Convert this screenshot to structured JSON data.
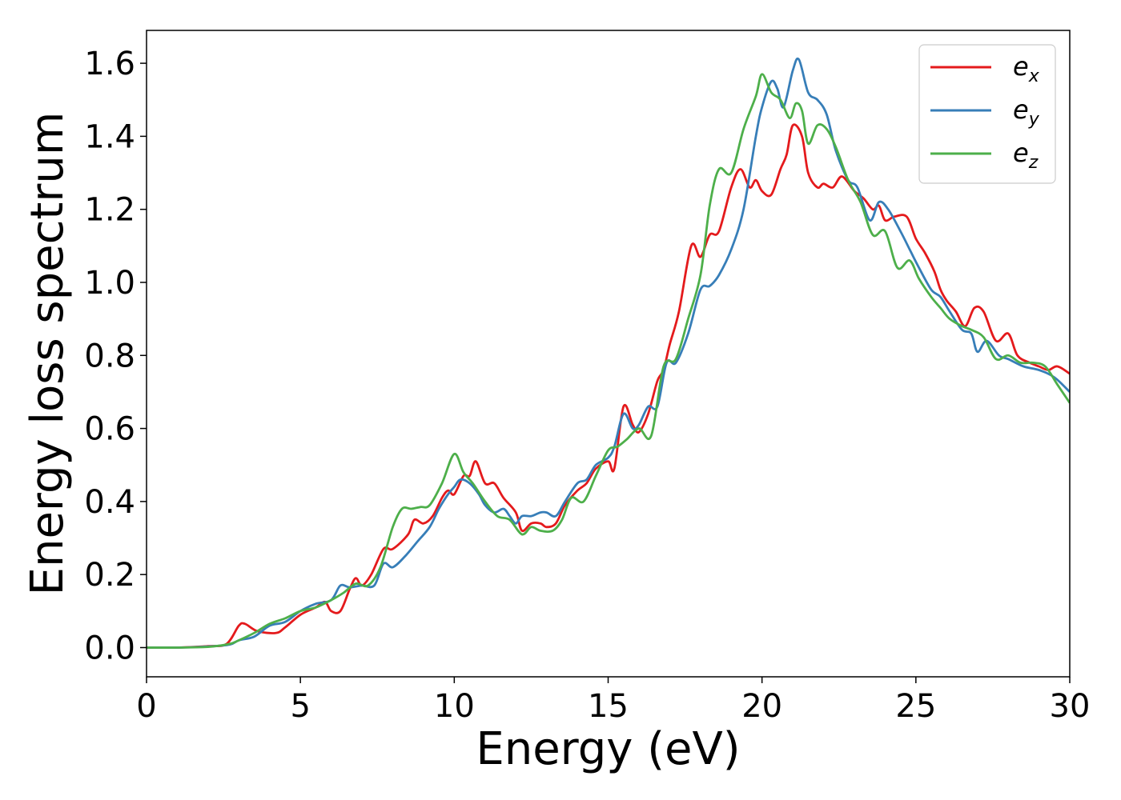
{
  "chart_data": {
    "type": "line",
    "xlabel": "Energy (eV)",
    "ylabel": "Energy loss spectrum",
    "xlim": [
      0,
      30
    ],
    "ylim": [
      -0.08,
      1.69
    ],
    "xticks": [
      0,
      5,
      10,
      15,
      20,
      25,
      30
    ],
    "xtick_labels": [
      "0",
      "5",
      "10",
      "15",
      "20",
      "25",
      "30"
    ],
    "yticks": [
      0.0,
      0.2,
      0.4,
      0.6,
      0.8,
      1.0,
      1.2,
      1.4,
      1.6
    ],
    "ytick_labels": [
      "0.0",
      "0.2",
      "0.4",
      "0.6",
      "0.8",
      "1.0",
      "1.2",
      "1.4",
      "1.6"
    ],
    "grid": false,
    "legend_position": "top-right",
    "series": [
      {
        "name": "e",
        "subscript": "x",
        "color": "#e41a1c",
        "points": [
          [
            0,
            0
          ],
          [
            1,
            0
          ],
          [
            2,
            0.004
          ],
          [
            2.6,
            0.01
          ],
          [
            3.0,
            0.06
          ],
          [
            3.2,
            0.065
          ],
          [
            3.6,
            0.045
          ],
          [
            4.2,
            0.04
          ],
          [
            4.5,
            0.055
          ],
          [
            5.0,
            0.09
          ],
          [
            5.5,
            0.11
          ],
          [
            5.8,
            0.125
          ],
          [
            6.0,
            0.1
          ],
          [
            6.3,
            0.1
          ],
          [
            6.6,
            0.16
          ],
          [
            6.8,
            0.19
          ],
          [
            7.0,
            0.17
          ],
          [
            7.3,
            0.2
          ],
          [
            7.7,
            0.27
          ],
          [
            8.0,
            0.27
          ],
          [
            8.5,
            0.31
          ],
          [
            8.7,
            0.35
          ],
          [
            9.0,
            0.34
          ],
          [
            9.3,
            0.36
          ],
          [
            9.6,
            0.41
          ],
          [
            9.8,
            0.43
          ],
          [
            10.0,
            0.42
          ],
          [
            10.3,
            0.47
          ],
          [
            10.5,
            0.47
          ],
          [
            10.7,
            0.51
          ],
          [
            11.0,
            0.45
          ],
          [
            11.3,
            0.45
          ],
          [
            11.6,
            0.41
          ],
          [
            12.0,
            0.37
          ],
          [
            12.2,
            0.32
          ],
          [
            12.5,
            0.34
          ],
          [
            12.8,
            0.34
          ],
          [
            13.0,
            0.33
          ],
          [
            13.3,
            0.34
          ],
          [
            13.6,
            0.39
          ],
          [
            14.0,
            0.43
          ],
          [
            14.3,
            0.45
          ],
          [
            14.6,
            0.49
          ],
          [
            15.0,
            0.51
          ],
          [
            15.2,
            0.49
          ],
          [
            15.5,
            0.66
          ],
          [
            15.8,
            0.61
          ],
          [
            16.0,
            0.59
          ],
          [
            16.3,
            0.64
          ],
          [
            16.6,
            0.73
          ],
          [
            16.8,
            0.76
          ],
          [
            17.0,
            0.83
          ],
          [
            17.3,
            0.92
          ],
          [
            17.7,
            1.1
          ],
          [
            18.0,
            1.07
          ],
          [
            18.3,
            1.13
          ],
          [
            18.6,
            1.14
          ],
          [
            19.0,
            1.26
          ],
          [
            19.3,
            1.31
          ],
          [
            19.6,
            1.26
          ],
          [
            19.8,
            1.28
          ],
          [
            20.0,
            1.25
          ],
          [
            20.3,
            1.24
          ],
          [
            20.6,
            1.31
          ],
          [
            20.8,
            1.35
          ],
          [
            21.0,
            1.43
          ],
          [
            21.3,
            1.4
          ],
          [
            21.5,
            1.3
          ],
          [
            21.8,
            1.26
          ],
          [
            22.0,
            1.27
          ],
          [
            22.3,
            1.26
          ],
          [
            22.6,
            1.29
          ],
          [
            23.0,
            1.25
          ],
          [
            23.3,
            1.23
          ],
          [
            23.6,
            1.2
          ],
          [
            23.8,
            1.21
          ],
          [
            24.0,
            1.17
          ],
          [
            24.3,
            1.18
          ],
          [
            24.7,
            1.18
          ],
          [
            25.0,
            1.12
          ],
          [
            25.3,
            1.08
          ],
          [
            25.6,
            1.03
          ],
          [
            25.8,
            0.98
          ],
          [
            26.0,
            0.95
          ],
          [
            26.3,
            0.92
          ],
          [
            26.6,
            0.88
          ],
          [
            26.9,
            0.93
          ],
          [
            27.2,
            0.92
          ],
          [
            27.6,
            0.84
          ],
          [
            28.0,
            0.86
          ],
          [
            28.3,
            0.8
          ],
          [
            28.7,
            0.78
          ],
          [
            29.0,
            0.77
          ],
          [
            29.3,
            0.76
          ],
          [
            29.6,
            0.77
          ],
          [
            30.0,
            0.75
          ]
        ]
      },
      {
        "name": "e",
        "subscript": "y",
        "color": "#377eb8",
        "points": [
          [
            0,
            0
          ],
          [
            1,
            0
          ],
          [
            2,
            0.003
          ],
          [
            2.7,
            0.008
          ],
          [
            3.0,
            0.02
          ],
          [
            3.5,
            0.03
          ],
          [
            4.0,
            0.06
          ],
          [
            4.5,
            0.07
          ],
          [
            5.0,
            0.1
          ],
          [
            5.5,
            0.12
          ],
          [
            6.0,
            0.13
          ],
          [
            6.3,
            0.17
          ],
          [
            6.6,
            0.165
          ],
          [
            7.0,
            0.17
          ],
          [
            7.4,
            0.17
          ],
          [
            7.7,
            0.23
          ],
          [
            8.0,
            0.22
          ],
          [
            8.4,
            0.25
          ],
          [
            8.8,
            0.29
          ],
          [
            9.2,
            0.33
          ],
          [
            9.5,
            0.38
          ],
          [
            9.8,
            0.42
          ],
          [
            10.0,
            0.44
          ],
          [
            10.2,
            0.46
          ],
          [
            10.5,
            0.45
          ],
          [
            10.8,
            0.42
          ],
          [
            11.0,
            0.39
          ],
          [
            11.3,
            0.37
          ],
          [
            11.6,
            0.38
          ],
          [
            11.8,
            0.36
          ],
          [
            12.0,
            0.34
          ],
          [
            12.2,
            0.36
          ],
          [
            12.5,
            0.36
          ],
          [
            12.8,
            0.37
          ],
          [
            13.0,
            0.37
          ],
          [
            13.3,
            0.36
          ],
          [
            13.6,
            0.4
          ],
          [
            14.0,
            0.45
          ],
          [
            14.3,
            0.46
          ],
          [
            14.6,
            0.5
          ],
          [
            15.0,
            0.52
          ],
          [
            15.2,
            0.55
          ],
          [
            15.5,
            0.64
          ],
          [
            15.8,
            0.6
          ],
          [
            16.0,
            0.61
          ],
          [
            16.3,
            0.66
          ],
          [
            16.6,
            0.66
          ],
          [
            16.9,
            0.78
          ],
          [
            17.2,
            0.78
          ],
          [
            17.6,
            0.86
          ],
          [
            18.0,
            0.98
          ],
          [
            18.3,
            0.99
          ],
          [
            18.6,
            1.02
          ],
          [
            19.0,
            1.09
          ],
          [
            19.4,
            1.2
          ],
          [
            19.8,
            1.4
          ],
          [
            20.0,
            1.48
          ],
          [
            20.3,
            1.55
          ],
          [
            20.5,
            1.53
          ],
          [
            20.7,
            1.48
          ],
          [
            21.0,
            1.58
          ],
          [
            21.2,
            1.61
          ],
          [
            21.5,
            1.52
          ],
          [
            21.8,
            1.5
          ],
          [
            22.1,
            1.46
          ],
          [
            22.4,
            1.36
          ],
          [
            22.8,
            1.28
          ],
          [
            23.1,
            1.26
          ],
          [
            23.5,
            1.17
          ],
          [
            23.8,
            1.22
          ],
          [
            24.1,
            1.2
          ],
          [
            24.5,
            1.14
          ],
          [
            24.8,
            1.09
          ],
          [
            25.1,
            1.04
          ],
          [
            25.5,
            0.98
          ],
          [
            25.8,
            0.96
          ],
          [
            26.1,
            0.92
          ],
          [
            26.5,
            0.87
          ],
          [
            26.8,
            0.86
          ],
          [
            27.0,
            0.81
          ],
          [
            27.3,
            0.84
          ],
          [
            27.7,
            0.8
          ],
          [
            28.0,
            0.79
          ],
          [
            28.5,
            0.77
          ],
          [
            29.0,
            0.76
          ],
          [
            29.5,
            0.74
          ],
          [
            30.0,
            0.7
          ]
        ]
      },
      {
        "name": "e",
        "subscript": "z",
        "color": "#4daf4a",
        "points": [
          [
            0,
            0
          ],
          [
            1,
            0
          ],
          [
            2,
            0.002
          ],
          [
            2.7,
            0.01
          ],
          [
            3.0,
            0.02
          ],
          [
            3.5,
            0.04
          ],
          [
            4.0,
            0.065
          ],
          [
            4.5,
            0.08
          ],
          [
            5.0,
            0.1
          ],
          [
            5.5,
            0.11
          ],
          [
            6.0,
            0.13
          ],
          [
            6.4,
            0.15
          ],
          [
            6.8,
            0.175
          ],
          [
            7.2,
            0.17
          ],
          [
            7.6,
            0.22
          ],
          [
            8.0,
            0.33
          ],
          [
            8.3,
            0.38
          ],
          [
            8.6,
            0.38
          ],
          [
            8.9,
            0.385
          ],
          [
            9.2,
            0.39
          ],
          [
            9.6,
            0.45
          ],
          [
            10.0,
            0.53
          ],
          [
            10.3,
            0.48
          ],
          [
            10.6,
            0.45
          ],
          [
            11.0,
            0.4
          ],
          [
            11.4,
            0.36
          ],
          [
            11.8,
            0.35
          ],
          [
            12.2,
            0.31
          ],
          [
            12.5,
            0.33
          ],
          [
            12.8,
            0.32
          ],
          [
            13.2,
            0.32
          ],
          [
            13.5,
            0.35
          ],
          [
            13.8,
            0.41
          ],
          [
            14.2,
            0.4
          ],
          [
            14.6,
            0.47
          ],
          [
            15.0,
            0.54
          ],
          [
            15.3,
            0.55
          ],
          [
            15.6,
            0.57
          ],
          [
            16.0,
            0.6
          ],
          [
            16.4,
            0.58
          ],
          [
            16.8,
            0.77
          ],
          [
            17.2,
            0.79
          ],
          [
            17.6,
            0.9
          ],
          [
            18.0,
            1.02
          ],
          [
            18.3,
            1.21
          ],
          [
            18.6,
            1.31
          ],
          [
            19.0,
            1.3
          ],
          [
            19.4,
            1.42
          ],
          [
            19.8,
            1.51
          ],
          [
            20.0,
            1.57
          ],
          [
            20.3,
            1.52
          ],
          [
            20.6,
            1.5
          ],
          [
            20.9,
            1.45
          ],
          [
            21.1,
            1.49
          ],
          [
            21.3,
            1.47
          ],
          [
            21.5,
            1.38
          ],
          [
            21.8,
            1.43
          ],
          [
            22.1,
            1.42
          ],
          [
            22.4,
            1.37
          ],
          [
            22.8,
            1.28
          ],
          [
            23.2,
            1.22
          ],
          [
            23.6,
            1.13
          ],
          [
            24.0,
            1.14
          ],
          [
            24.4,
            1.04
          ],
          [
            24.8,
            1.06
          ],
          [
            25.1,
            1.01
          ],
          [
            25.5,
            0.96
          ],
          [
            25.8,
            0.93
          ],
          [
            26.1,
            0.9
          ],
          [
            26.5,
            0.88
          ],
          [
            26.8,
            0.87
          ],
          [
            27.2,
            0.85
          ],
          [
            27.6,
            0.79
          ],
          [
            28.0,
            0.8
          ],
          [
            28.4,
            0.78
          ],
          [
            28.8,
            0.78
          ],
          [
            29.2,
            0.77
          ],
          [
            29.6,
            0.72
          ],
          [
            30.0,
            0.67
          ]
        ]
      }
    ]
  }
}
